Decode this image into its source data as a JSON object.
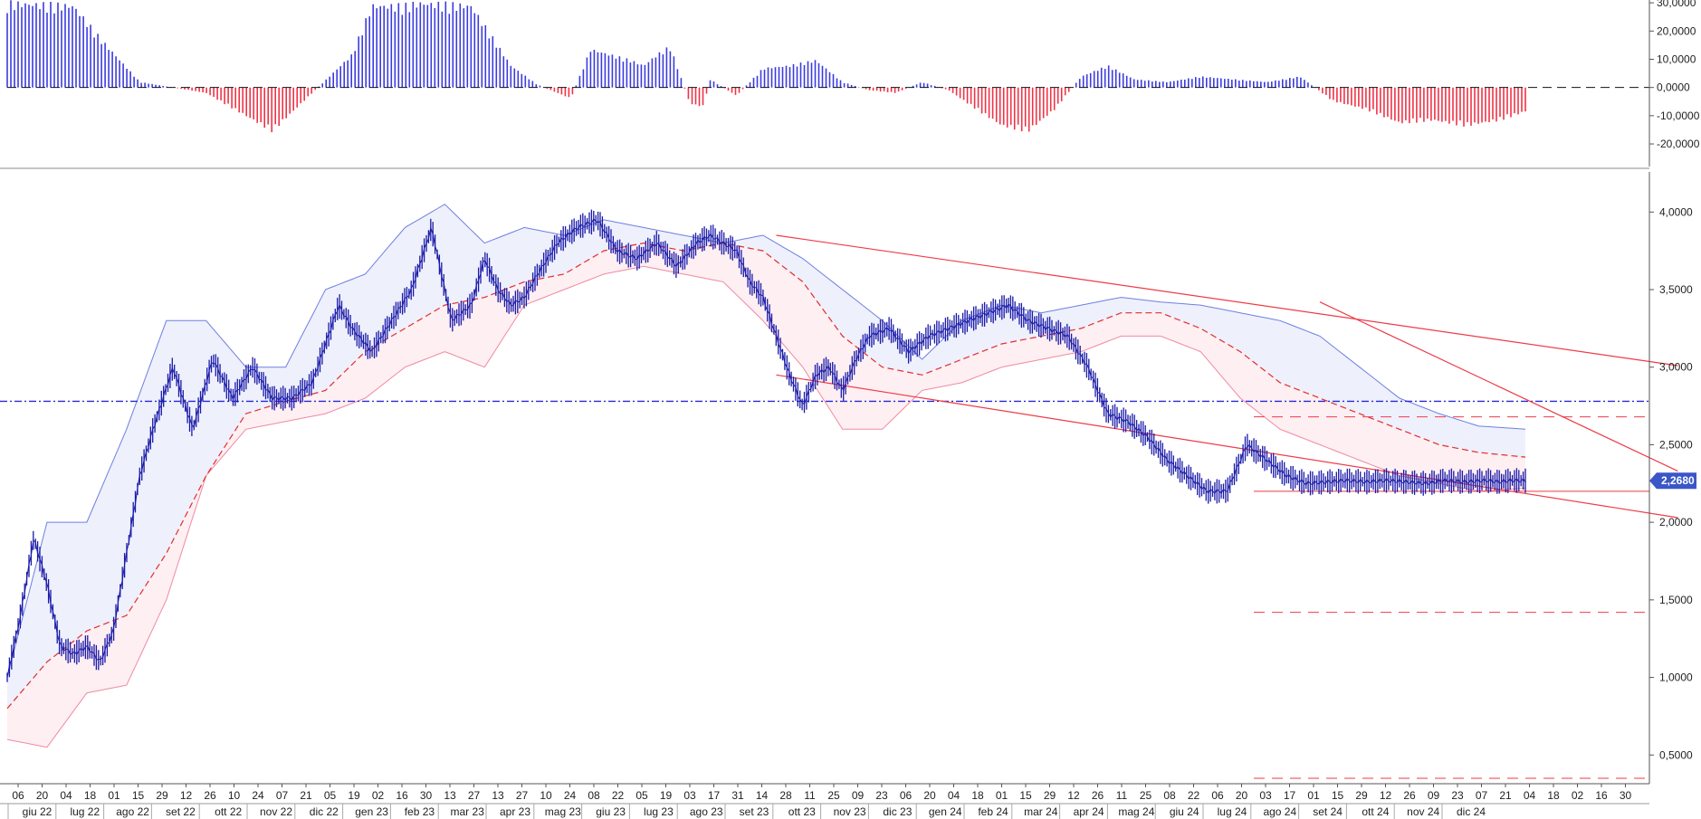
{
  "colors": {
    "price": "#1a1aa8",
    "band_line": "#6f7fe0",
    "upper_fill": "#eef0fc",
    "lower_fill": "#fdeff2",
    "lower_line": "#f08aa0",
    "ma": "#e32d2d",
    "trend": "#ee3b47",
    "hline_blue": "#2a2ad8",
    "hist_pos": "#3b3be0",
    "hist_neg": "#ef3346",
    "badge": "#3a56c8"
  },
  "chart_data": [
    {
      "type": "bar",
      "panel": "oscillator",
      "ylim": [
        -28000,
        31000
      ],
      "y_ticks": [
        30000,
        20000,
        10000,
        0,
        -10000,
        -20000
      ],
      "y_tick_labels": [
        "30,0000",
        "20,0000",
        "10,0000",
        "0,0000",
        "-10,0000",
        "-20,0000"
      ],
      "zero_line": "dashed",
      "series": [
        {
          "x": [
            0,
            0.1,
            0.14,
            0.2,
            0.3,
            0.4,
            0.52,
            0.55,
            0.6,
            0.62,
            0.7,
            0.76,
            0.8,
            0.85,
            0.88,
            0.94,
            0.96,
            0.98,
            1.0,
            1.03,
            1.05,
            1.06,
            1.1,
            1.14,
            1.18,
            1.22,
            1.26,
            1.3,
            1.34,
            1.38,
            1.42,
            1.45,
            1.5,
            1.54,
            1.58,
            1.62,
            1.66,
            1.7,
            1.75,
            1.8,
            1.85,
            1.9,
            1.95,
            2.0,
            2.05,
            2.1,
            2.15,
            2.2,
            2.25,
            2.3,
            2.33
          ],
          "values": [
            31000,
            30000,
            18000,
            2000,
            -2000,
            -16000,
            12000,
            30000,
            30000,
            31000,
            30000,
            8000,
            1000,
            -4000,
            14000,
            10000,
            8000,
            12000,
            15000,
            -6000,
            -7000,
            3000,
            -3000,
            7000,
            8000,
            10000,
            2000,
            -1000,
            -2000,
            2000,
            -1000,
            -6000,
            -14000,
            -16000,
            -8000,
            4000,
            8000,
            3000,
            2000,
            4000,
            3000,
            2000,
            4000,
            -5000,
            -8000,
            -13000,
            -12000,
            -14000,
            -12000,
            -8000,
            -7000
          ]
        }
      ]
    },
    {
      "type": "line",
      "panel": "price",
      "ylim": [
        0.35,
        4.2
      ],
      "y_ticks": [
        4.0,
        3.5,
        3.0,
        2.5,
        2.0,
        1.5,
        1.0,
        0.5
      ],
      "y_tick_labels": [
        "4,0000",
        "3,5000",
        "3,0000",
        "2,5000",
        "2,0000",
        "1,5000",
        "1,0000",
        "0,5000"
      ],
      "last_value_label": "2,2680",
      "horizontal_levels": [
        {
          "value": 2.78,
          "style": "dash-dot",
          "color": "blue"
        },
        {
          "value": 2.68,
          "style": "dashed",
          "color": "red"
        },
        {
          "value": 2.2,
          "style": "solid",
          "color": "red"
        },
        {
          "value": 1.42,
          "style": "dashed",
          "color": "red"
        },
        {
          "value": 0.35,
          "style": "dashed",
          "color": "red"
        }
      ],
      "trendlines": [
        {
          "from": [
            1.16,
            3.85
          ],
          "to": [
            2.52,
            3.01
          ]
        },
        {
          "from": [
            1.16,
            2.95
          ],
          "to": [
            2.52,
            2.03
          ]
        },
        {
          "from": [
            1.98,
            3.42
          ],
          "to": [
            2.52,
            2.33
          ]
        }
      ],
      "series": [
        {
          "name": "price",
          "x": [
            0.0,
            0.02,
            0.04,
            0.06,
            0.08,
            0.1,
            0.12,
            0.14,
            0.16,
            0.18,
            0.2,
            0.22,
            0.25,
            0.28,
            0.31,
            0.34,
            0.37,
            0.4,
            0.43,
            0.46,
            0.5,
            0.52,
            0.55,
            0.58,
            0.61,
            0.64,
            0.67,
            0.7,
            0.72,
            0.74,
            0.76,
            0.78,
            0.8,
            0.83,
            0.86,
            0.89,
            0.92,
            0.95,
            0.98,
            1.01,
            1.04,
            1.06,
            1.08,
            1.1,
            1.12,
            1.14,
            1.16,
            1.18,
            1.2,
            1.22,
            1.24,
            1.26,
            1.28,
            1.3,
            1.33,
            1.36,
            1.39,
            1.42,
            1.45,
            1.48,
            1.51,
            1.54,
            1.57,
            1.6,
            1.63,
            1.66,
            1.69,
            1.72,
            1.75,
            1.78,
            1.81,
            1.84,
            1.87,
            1.9,
            1.93,
            1.96,
            1.99,
            2.02,
            2.05,
            2.08,
            2.11,
            2.14,
            2.17,
            2.2,
            2.23,
            2.25,
            2.27,
            2.29
          ],
          "values": [
            1.0,
            1.4,
            1.9,
            1.6,
            1.2,
            1.15,
            1.2,
            1.1,
            1.3,
            1.8,
            2.3,
            2.6,
            3.0,
            2.6,
            3.05,
            2.8,
            3.0,
            2.8,
            2.8,
            2.9,
            3.4,
            3.25,
            3.1,
            3.3,
            3.5,
            3.9,
            3.3,
            3.4,
            3.7,
            3.5,
            3.4,
            3.45,
            3.6,
            3.8,
            3.9,
            3.95,
            3.75,
            3.7,
            3.8,
            3.65,
            3.8,
            3.85,
            3.8,
            3.75,
            3.55,
            3.45,
            3.2,
            2.95,
            2.75,
            2.95,
            3.0,
            2.85,
            3.05,
            3.2,
            3.25,
            3.1,
            3.2,
            3.25,
            3.3,
            3.35,
            3.4,
            3.3,
            3.25,
            3.2,
            3.0,
            2.7,
            2.65,
            2.55,
            2.4,
            2.3,
            2.2,
            2.2,
            2.5,
            2.4,
            2.3,
            2.25,
            2.26,
            2.27,
            2.26,
            2.27,
            2.26,
            2.25,
            2.27,
            2.26,
            2.27,
            2.26,
            2.27,
            2.268
          ]
        },
        {
          "name": "ma",
          "x": [
            0.0,
            0.06,
            0.12,
            0.18,
            0.24,
            0.3,
            0.36,
            0.42,
            0.48,
            0.54,
            0.6,
            0.66,
            0.72,
            0.78,
            0.84,
            0.9,
            0.96,
            1.02,
            1.08,
            1.14,
            1.2,
            1.26,
            1.32,
            1.38,
            1.44,
            1.5,
            1.56,
            1.62,
            1.68,
            1.74,
            1.8,
            1.86,
            1.92,
            1.98,
            2.04,
            2.1,
            2.16,
            2.22,
            2.29
          ],
          "values": [
            0.8,
            1.1,
            1.3,
            1.4,
            1.8,
            2.3,
            2.7,
            2.78,
            2.85,
            3.1,
            3.25,
            3.4,
            3.45,
            3.55,
            3.6,
            3.75,
            3.8,
            3.75,
            3.8,
            3.75,
            3.55,
            3.2,
            3.0,
            2.95,
            3.05,
            3.15,
            3.2,
            3.25,
            3.35,
            3.35,
            3.25,
            3.1,
            2.9,
            2.8,
            2.7,
            2.6,
            2.5,
            2.45,
            2.42
          ]
        },
        {
          "name": "upper",
          "x": [
            0.0,
            0.06,
            0.12,
            0.18,
            0.24,
            0.3,
            0.36,
            0.42,
            0.48,
            0.54,
            0.6,
            0.66,
            0.72,
            0.78,
            0.84,
            0.9,
            0.96,
            1.02,
            1.08,
            1.14,
            1.2,
            1.26,
            1.32,
            1.38,
            1.44,
            1.5,
            1.56,
            1.62,
            1.68,
            1.74,
            1.8,
            1.86,
            1.92,
            1.98,
            2.04,
            2.1,
            2.16,
            2.22,
            2.29
          ],
          "values": [
            1.0,
            2.0,
            2.0,
            2.6,
            3.3,
            3.3,
            3.0,
            3.0,
            3.5,
            3.6,
            3.9,
            4.05,
            3.8,
            3.9,
            3.85,
            3.95,
            3.9,
            3.85,
            3.8,
            3.85,
            3.7,
            3.5,
            3.3,
            3.05,
            3.3,
            3.4,
            3.35,
            3.4,
            3.45,
            3.42,
            3.4,
            3.35,
            3.3,
            3.2,
            3.0,
            2.8,
            2.7,
            2.62,
            2.6
          ]
        },
        {
          "name": "lower",
          "x": [
            0.0,
            0.06,
            0.12,
            0.18,
            0.24,
            0.3,
            0.36,
            0.42,
            0.48,
            0.54,
            0.6,
            0.66,
            0.72,
            0.78,
            0.84,
            0.9,
            0.96,
            1.02,
            1.08,
            1.14,
            1.2,
            1.26,
            1.32,
            1.38,
            1.44,
            1.5,
            1.56,
            1.62,
            1.68,
            1.74,
            1.8,
            1.86,
            1.92,
            1.98,
            2.04,
            2.1,
            2.16,
            2.22,
            2.29
          ],
          "values": [
            0.6,
            0.55,
            0.9,
            0.95,
            1.5,
            2.3,
            2.6,
            2.65,
            2.7,
            2.8,
            3.0,
            3.1,
            3.0,
            3.4,
            3.5,
            3.6,
            3.65,
            3.6,
            3.55,
            3.3,
            3.0,
            2.6,
            2.6,
            2.85,
            2.9,
            3.0,
            3.05,
            3.1,
            3.2,
            3.2,
            3.1,
            2.8,
            2.6,
            2.5,
            2.4,
            2.3,
            2.25,
            2.2,
            2.22
          ]
        }
      ]
    }
  ],
  "x_axis": {
    "day_ticks": [
      "06",
      "20",
      "04",
      "18",
      "01",
      "15",
      "29",
      "12",
      "26",
      "10",
      "24",
      "07",
      "21",
      "05",
      "19",
      "02",
      "16",
      "30",
      "13",
      "27",
      "13",
      "27",
      "10",
      "24",
      "08",
      "22",
      "05",
      "19",
      "03",
      "17",
      "31",
      "14",
      "28",
      "11",
      "25",
      "09",
      "23",
      "06",
      "20",
      "04",
      "18",
      "01",
      "15",
      "29",
      "12",
      "26",
      "11",
      "25",
      "08",
      "22",
      "06",
      "20",
      "03",
      "17",
      "01",
      "15",
      "29",
      "12",
      "26",
      "09",
      "23",
      "07",
      "21",
      "04",
      "18",
      "02",
      "16",
      "30"
    ],
    "month_ticks": [
      "giu 22",
      "lug 22",
      "ago 22",
      "set 22",
      "ott 22",
      "nov 22",
      "dic 22",
      "gen 23",
      "feb 23",
      "mar 23",
      "apr 23",
      "mag 23",
      "giu 23",
      "lug 23",
      "ago 23",
      "set 23",
      "ott 23",
      "nov 23",
      "dic 23",
      "gen 24",
      "feb 24",
      "mar 24",
      "apr 24",
      "mag 24",
      "giu 24",
      "lug 24",
      "ago 24",
      "set 24",
      "ott 24",
      "nov 24",
      "dic 24"
    ]
  }
}
